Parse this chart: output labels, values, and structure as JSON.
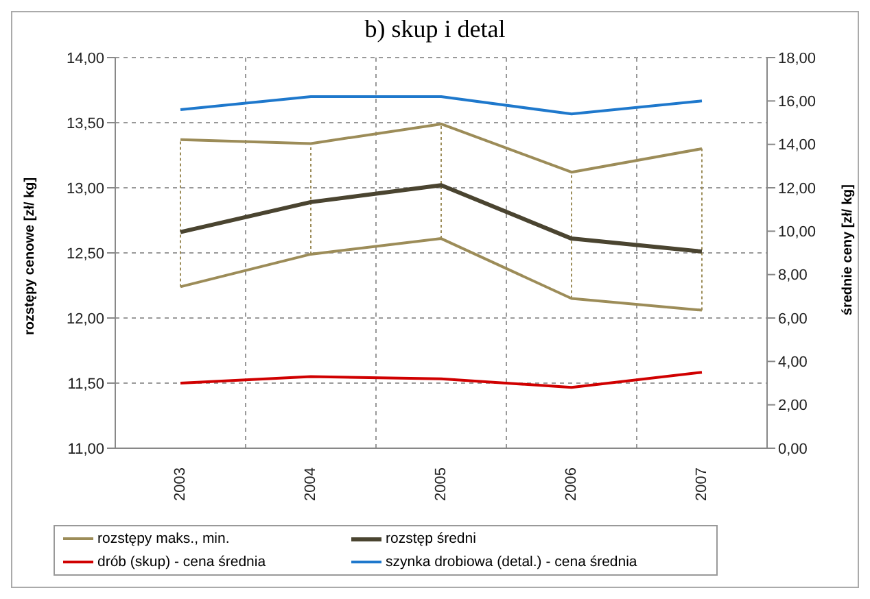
{
  "chart_data": {
    "type": "line",
    "title": "b) skup i detal",
    "ylabel": "rozstępy cenowe [zł/ kg]",
    "y2label": "średnie ceny [zł/ kg]",
    "categories": [
      "2003",
      "2004",
      "2005",
      "2006",
      "2007"
    ],
    "series": [
      {
        "name": "rozstępy maks., min.",
        "color": "#9c8c58",
        "values": [
          13.37,
          13.34,
          13.49,
          13.12,
          13.3
        ]
      },
      {
        "color": "#9c8c58",
        "values": [
          12.24,
          12.49,
          12.61,
          12.15,
          12.06
        ],
        "errors": [
          [
            12.24,
            13.37
          ],
          [
            12.49,
            13.34
          ],
          [
            12.61,
            13.49
          ],
          [
            12.15,
            13.12
          ],
          [
            12.06,
            13.3
          ]
        ]
      },
      {
        "name": "rozstęp średni",
        "color": "#4a4430",
        "values": [
          12.66,
          12.89,
          13.02,
          12.61,
          12.51
        ]
      },
      {
        "name": "drób (skup) - cena średnia",
        "color": "#d00000",
        "axis": "y2",
        "values": [
          3.0,
          3.3,
          3.2,
          2.8,
          3.5
        ]
      },
      {
        "name": "szynka drobiowa (detal.) - cena średnia",
        "color": "#1e78cc",
        "axis": "y2",
        "values": [
          15.6,
          16.2,
          16.2,
          15.4,
          16.0
        ]
      }
    ],
    "ylim": [
      11,
      14
    ],
    "yticks": [
      {
        "value": 11,
        "label": "11,00"
      },
      {
        "value": 11.5,
        "label": "11,50"
      },
      {
        "value": 12,
        "label": "12,00"
      },
      {
        "value": 12.5,
        "label": "12,50"
      },
      {
        "value": 13,
        "label": "13,00"
      },
      {
        "value": 13.5,
        "label": "13,50"
      },
      {
        "value": 14,
        "label": "14,00"
      }
    ],
    "y2lim": [
      0,
      18
    ],
    "y2ticks": [
      {
        "value": 0,
        "label": "0,00"
      },
      {
        "value": 2,
        "label": "2,00"
      },
      {
        "value": 4,
        "label": "4,00"
      },
      {
        "value": 6,
        "label": "6,00"
      },
      {
        "value": 8,
        "label": "8,00"
      },
      {
        "value": 10,
        "label": "10,00"
      },
      {
        "value": 12,
        "label": "12,00"
      },
      {
        "value": 14,
        "label": "14,00"
      },
      {
        "value": 16,
        "label": "16,00"
      },
      {
        "value": 18,
        "label": "18,00"
      }
    ],
    "grid": true,
    "legend": "bottom",
    "marker": "none",
    "line_style": "solid"
  }
}
